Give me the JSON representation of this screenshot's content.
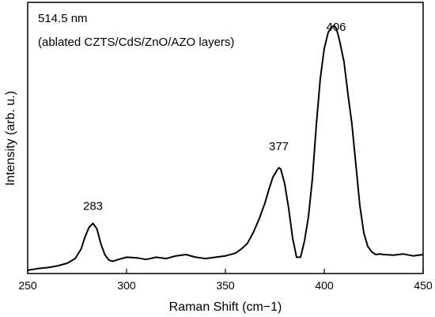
{
  "chart_data": {
    "type": "line",
    "xlabel": "Raman Shift (cm−1)",
    "ylabel": "Intensity (arb. u.)",
    "xlim": [
      250,
      450
    ],
    "ylim": [
      0,
      1
    ],
    "x_ticks": [
      "250",
      "300",
      "350",
      "400",
      "450"
    ],
    "y_ticks_labeled": false,
    "grid": false,
    "legend": "none",
    "annotations": [
      "514.5 nm",
      "(ablated CZTS/CdS/ZnO/AZO layers)"
    ],
    "peak_labels": [
      {
        "text": "283",
        "x": 283,
        "y": 0.235
      },
      {
        "text": "377",
        "x": 377,
        "y": 0.455
      },
      {
        "text": "406",
        "x": 406,
        "y": 0.895
      }
    ],
    "series": [
      {
        "color": "#000000",
        "x": [
          250,
          255,
          260,
          265,
          270,
          274,
          277,
          279,
          281,
          283,
          285,
          287,
          289,
          291,
          293,
          296,
          300,
          305,
          310,
          315,
          320,
          325,
          330,
          335,
          340,
          345,
          350,
          355,
          358,
          361,
          364,
          367,
          370,
          372,
          374,
          376,
          377,
          378,
          380,
          382,
          384,
          386,
          388,
          390,
          392,
          394,
          396,
          398,
          400,
          402,
          404,
          405,
          406,
          407,
          408,
          410,
          412,
          414,
          416,
          418,
          420,
          422,
          424,
          426,
          428,
          430,
          435,
          440,
          445,
          450
        ],
        "y": [
          0.012,
          0.018,
          0.022,
          0.028,
          0.038,
          0.055,
          0.09,
          0.135,
          0.17,
          0.185,
          0.165,
          0.11,
          0.07,
          0.05,
          0.045,
          0.052,
          0.06,
          0.058,
          0.052,
          0.06,
          0.055,
          0.065,
          0.07,
          0.06,
          0.055,
          0.06,
          0.065,
          0.075,
          0.09,
          0.11,
          0.15,
          0.2,
          0.26,
          0.31,
          0.355,
          0.38,
          0.39,
          0.385,
          0.33,
          0.24,
          0.13,
          0.06,
          0.06,
          0.12,
          0.21,
          0.35,
          0.55,
          0.72,
          0.83,
          0.89,
          0.91,
          0.915,
          0.905,
          0.88,
          0.85,
          0.78,
          0.66,
          0.55,
          0.4,
          0.25,
          0.15,
          0.1,
          0.08,
          0.07,
          0.072,
          0.07,
          0.068,
          0.072,
          0.065,
          0.07
        ]
      }
    ]
  }
}
